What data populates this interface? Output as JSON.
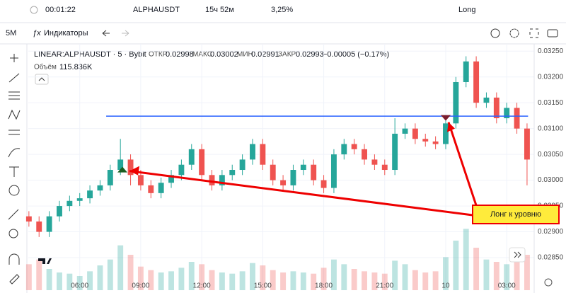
{
  "header": {
    "timer": "00:01:22",
    "symbol": "ALPHAUSDT",
    "duration": "15ч 52м",
    "change": "3,25%",
    "side": "Long"
  },
  "toolbar": {
    "interval": "5M",
    "indicators": "Индикаторы"
  },
  "legend": {
    "instrument": "LINEAR:ALPHAUSDT · 5 · Bybit",
    "open_label": "ОТКР",
    "open": "0.02998",
    "high_label": "МАКС",
    "high": "0.03002",
    "low_label": "МИН",
    "low": "0.02991",
    "close_label": "ЗАКР",
    "close": "0.02993",
    "delta": "−0.00005 (−0.17%)",
    "volume_label": "Объём",
    "volume": "115.836K"
  },
  "chart_data": {
    "type": "candlestick",
    "x": [
      3.5,
      4,
      4.5,
      5,
      5.5,
      6,
      6.5,
      7,
      7.5,
      8,
      8.5,
      9,
      9.5,
      10,
      10.5,
      11,
      11.5,
      12,
      12.5,
      13,
      13.5,
      14,
      14.5,
      15,
      15.5,
      16,
      16.5,
      17,
      17.5,
      18,
      18.5,
      19,
      19.5,
      20,
      20.5,
      21,
      21.5,
      22,
      22.5,
      23,
      23.5,
      24,
      24.5,
      25,
      25.5,
      26,
      26.5,
      27,
      27.5,
      28
    ],
    "open": [
      0.0293,
      0.0292,
      0.029,
      0.0293,
      0.0295,
      0.0296,
      0.02965,
      0.0298,
      0.0299,
      0.0302,
      0.0304,
      0.0301,
      0.0299,
      0.02975,
      0.02995,
      0.0301,
      0.0303,
      0.0306,
      0.0301,
      0.0299,
      0.0301,
      0.0302,
      0.0304,
      0.0307,
      0.0303,
      0.03,
      0.0299,
      0.0302,
      0.0303,
      0.03,
      0.02985,
      0.0305,
      0.0307,
      0.0306,
      0.0304,
      0.0303,
      0.0302,
      0.0309,
      0.031,
      0.0308,
      0.03075,
      0.0307,
      0.0311,
      0.0319,
      0.0323,
      0.0315,
      0.0316,
      0.0312,
      0.0314,
      0.031
    ],
    "high": [
      0.0294,
      0.0293,
      0.0294,
      0.0296,
      0.0297,
      0.02975,
      0.0299,
      0.03,
      0.0303,
      0.0308,
      0.0305,
      0.0302,
      0.03,
      0.03005,
      0.0302,
      0.0304,
      0.0307,
      0.0307,
      0.0302,
      0.0302,
      0.0303,
      0.0305,
      0.0308,
      0.0308,
      0.0304,
      0.0301,
      0.0303,
      0.0304,
      0.0304,
      0.0301,
      0.0306,
      0.0308,
      0.0308,
      0.0307,
      0.0305,
      0.0304,
      0.0312,
      0.0311,
      0.0311,
      0.0309,
      0.03085,
      0.0312,
      0.032,
      0.0324,
      0.0324,
      0.0317,
      0.0317,
      0.0315,
      0.0315,
      0.0311
    ],
    "low": [
      0.0291,
      0.0289,
      0.0289,
      0.0292,
      0.0294,
      0.0295,
      0.02955,
      0.0297,
      0.0298,
      0.0301,
      0.0299,
      0.0298,
      0.02965,
      0.02965,
      0.02985,
      0.03,
      0.0302,
      0.03,
      0.0298,
      0.0298,
      0.03,
      0.0301,
      0.0303,
      0.0302,
      0.0299,
      0.0298,
      0.0298,
      0.0301,
      0.0299,
      0.02975,
      0.02975,
      0.0304,
      0.0305,
      0.0303,
      0.0302,
      0.0301,
      0.0301,
      0.0308,
      0.0307,
      0.03065,
      0.0306,
      0.0306,
      0.031,
      0.0318,
      0.0314,
      0.0314,
      0.0311,
      0.0311,
      0.0309,
      0.0299
    ],
    "close": [
      0.0292,
      0.029,
      0.0293,
      0.0295,
      0.0296,
      0.02965,
      0.0298,
      0.0299,
      0.0302,
      0.0304,
      0.0301,
      0.0299,
      0.02975,
      0.02995,
      0.0301,
      0.0303,
      0.0306,
      0.0301,
      0.0299,
      0.0301,
      0.0302,
      0.0304,
      0.0307,
      0.0303,
      0.03,
      0.0299,
      0.0302,
      0.0303,
      0.03,
      0.02985,
      0.0305,
      0.0307,
      0.0306,
      0.0304,
      0.0303,
      0.0302,
      0.0309,
      0.031,
      0.0308,
      0.03075,
      0.0307,
      0.0311,
      0.0319,
      0.0323,
      0.0315,
      0.0316,
      0.0312,
      0.0314,
      0.031,
      0.0304
    ],
    "volumes": [
      220,
      260,
      180,
      150,
      140,
      120,
      160,
      210,
      260,
      380,
      300,
      200,
      170,
      150,
      160,
      190,
      240,
      220,
      170,
      150,
      140,
      160,
      230,
      210,
      170,
      150,
      160,
      150,
      140,
      190,
      260,
      220,
      180,
      160,
      150,
      140,
      250,
      220,
      170,
      150,
      160,
      280,
      420,
      520,
      360,
      260,
      240,
      220,
      260,
      300
    ],
    "vlim": [
      0,
      600
    ],
    "up_color": "#26a69a",
    "down_color": "#ef5350",
    "xlim": [
      3.47,
      28.35
    ],
    "xticks": [
      {
        "value": 6,
        "label": "06:00"
      },
      {
        "value": 9,
        "label": "09:00"
      },
      {
        "value": 12,
        "label": "12:00"
      },
      {
        "value": 15,
        "label": "15:00"
      },
      {
        "value": 18,
        "label": "18:00"
      },
      {
        "value": 21,
        "label": "21:00"
      },
      {
        "value": 24,
        "label": "10"
      },
      {
        "value": 27,
        "label": "03:00"
      }
    ],
    "ylim": [
      0.02787,
      0.03264
    ],
    "yticks": [
      {
        "value": 0.0285,
        "label": "0.02850"
      },
      {
        "value": 0.029,
        "label": "0.02900"
      },
      {
        "value": 0.0295,
        "label": "0.02950"
      },
      {
        "value": 0.03,
        "label": "0.03000"
      },
      {
        "value": 0.0305,
        "label": "0.03050"
      },
      {
        "value": 0.031,
        "label": "0.03100"
      },
      {
        "value": 0.0315,
        "label": "0.03150"
      },
      {
        "value": 0.032,
        "label": "0.03200"
      },
      {
        "value": 0.0325,
        "label": "0.03250"
      }
    ],
    "grid": true,
    "level": {
      "value": 0.03124,
      "x": [
        7.3,
        28.05
      ],
      "color": "#2962ff"
    },
    "markers": [
      {
        "x": 8.1,
        "y": 0.03015,
        "dir": "up",
        "color": "#1b5e20"
      },
      {
        "x": 24.0,
        "y": 0.03126,
        "dir": "down",
        "color": "#7b1d2e"
      }
    ],
    "annotation": {
      "text": "Лонг к уровню"
    }
  }
}
